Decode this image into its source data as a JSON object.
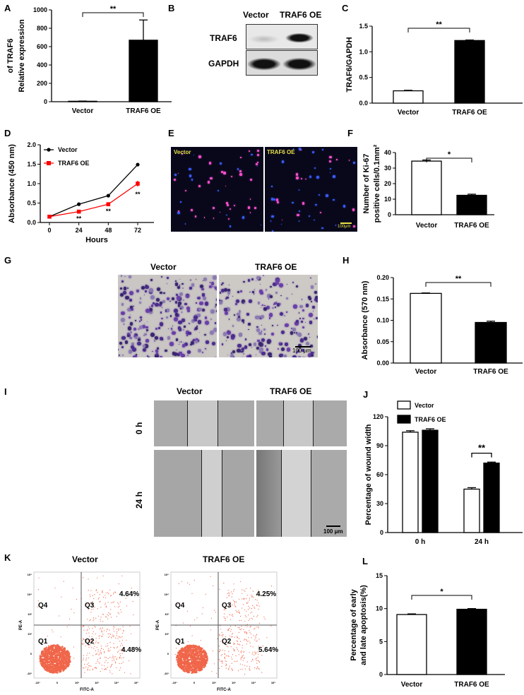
{
  "panel_labels": [
    "A",
    "B",
    "C",
    "D",
    "E",
    "F",
    "G",
    "H",
    "I",
    "J",
    "K",
    "L"
  ],
  "western_blot": {
    "lanes": [
      "Vector",
      "TRAF6 OE"
    ],
    "rows": [
      "TRAF6",
      "GAPDH"
    ]
  },
  "if_image": {
    "labels": [
      "Vector",
      "TRAF6 OE"
    ],
    "scale_bar": "100μm",
    "colors": {
      "nuclei": "#3a5cff",
      "ki67": "#ff4fd0"
    }
  },
  "transwell": {
    "labels": [
      "Vector",
      "TRAF6 OE"
    ],
    "scale_bar": "100 μm"
  },
  "wound": {
    "columns": [
      "Vector",
      "TRAF6 OE"
    ],
    "rows": [
      "0 h",
      "24 h"
    ],
    "scale_bar": "100 μm"
  },
  "flow": {
    "titles": [
      "Vector",
      "TRAF6 OE"
    ],
    "x_label": "FITC-A",
    "y_label": "PE-A",
    "quadrants": [
      "Q4",
      "Q3",
      "Q1",
      "Q2"
    ],
    "percentages": [
      {
        "q3": "4.64%",
        "q2": "4.48%"
      },
      {
        "q3": "4.25%",
        "q2": "5.64%"
      }
    ],
    "x_ticks": [
      "-10³",
      "0",
      "10³",
      "10³",
      "10⁴",
      "10⁵"
    ],
    "y_ticks": [
      "-10³",
      "0",
      "10³",
      "10³",
      "10⁴",
      "10⁵"
    ],
    "dot_color": "#f0664a"
  },
  "chart_data": [
    {
      "id": "A",
      "type": "bar",
      "categories": [
        "Vector",
        "TRAF6 OE"
      ],
      "values": [
        5,
        670
      ],
      "errors": [
        2,
        220
      ],
      "fills": [
        "#ffffff",
        "#000000"
      ],
      "ylabel": [
        "Relative expression",
        "of TRAF6"
      ],
      "ylim": [
        0,
        1000
      ],
      "yticks": [
        "0",
        "200",
        "400",
        "600",
        "800",
        "1000"
      ],
      "significance": "**"
    },
    {
      "id": "C",
      "type": "bar",
      "categories": [
        "Vector",
        "TRAF6 OE"
      ],
      "values": [
        0.24,
        1.22
      ],
      "errors": [
        0.01,
        0.01
      ],
      "fills": [
        "#ffffff",
        "#000000"
      ],
      "ylabel": [
        "TRAF6/GAPDH"
      ],
      "ylim": [
        0,
        1.5
      ],
      "yticks": [
        "0.0",
        "0.5",
        "1.0",
        "1.5"
      ],
      "significance": "**"
    },
    {
      "id": "D",
      "type": "line",
      "x": [
        0,
        24,
        48,
        72
      ],
      "xlabel": "Hours",
      "xticks": [
        "0",
        "24",
        "48",
        "72"
      ],
      "ylabel": [
        "Absorbance (450 nm)"
      ],
      "ylim": [
        0,
        2.0
      ],
      "yticks": [
        "0.0",
        "0.5",
        "1.0",
        "1.5",
        "2.0"
      ],
      "series": [
        {
          "name": "Vector",
          "values": [
            0.15,
            0.47,
            0.69,
            1.49
          ],
          "errors": [
            0.01,
            0.01,
            0.01,
            0.01
          ],
          "color": "#000000"
        },
        {
          "name": "TRAF6 OE",
          "values": [
            0.15,
            0.28,
            0.47,
            1.0
          ],
          "errors": [
            0.01,
            0.03,
            0.03,
            0.07
          ],
          "color": "#ff0000"
        }
      ],
      "significance": [
        "",
        "**",
        "**",
        "**"
      ],
      "legend": "top-left"
    },
    {
      "id": "F",
      "type": "bar",
      "categories": [
        "Vector",
        "TRAF6 OE"
      ],
      "values": [
        34.5,
        12.5
      ],
      "errors": [
        0.7,
        0.7
      ],
      "fills": [
        "#ffffff",
        "#000000"
      ],
      "ylabel": [
        "Number of Ki-67",
        "positive cells/0.1mm²"
      ],
      "ylim": [
        0,
        40
      ],
      "yticks": [
        "0",
        "10",
        "20",
        "30",
        "40"
      ],
      "significance": "*"
    },
    {
      "id": "H",
      "type": "bar",
      "categories": [
        "Vector",
        "TRAF6 OE"
      ],
      "values": [
        0.163,
        0.095
      ],
      "errors": [
        0.001,
        0.003
      ],
      "fills": [
        "#ffffff",
        "#000000"
      ],
      "ylabel": [
        "Absorbance (570 nm)"
      ],
      "ylim": [
        0,
        0.2
      ],
      "yticks": [
        "0.00",
        "0.05",
        "0.10",
        "0.15",
        "0.20"
      ],
      "significance": "**"
    },
    {
      "id": "J",
      "type": "bar",
      "categories": [
        "0 h",
        "24 h"
      ],
      "ylabel": [
        "Percentage of wound width"
      ],
      "ylim": [
        0,
        120
      ],
      "yticks": [
        "0",
        "30",
        "60",
        "90",
        "120"
      ],
      "series": [
        {
          "name": "Vector",
          "values": [
            104,
            45
          ],
          "errors": [
            1.5,
            1.5
          ],
          "fill": "#ffffff"
        },
        {
          "name": "TRAF6 OE",
          "values": [
            106,
            72
          ],
          "errors": [
            1.5,
            1
          ],
          " fill": "#000000",
          "fill": "#000000"
        }
      ],
      "significance": [
        "",
        "**"
      ],
      "legend": "top-left"
    },
    {
      "id": "L",
      "type": "bar",
      "categories": [
        "Vector",
        "TRAF6 OE"
      ],
      "values": [
        9.1,
        9.9
      ],
      "errors": [
        0.1,
        0.1
      ],
      "fills": [
        "#ffffff",
        "#000000"
      ],
      "ylabel": [
        "Percentage of early",
        "and late apoptosis(%)"
      ],
      "ylim": [
        0,
        15
      ],
      "yticks": [
        "0",
        "5",
        "10",
        "15"
      ],
      "significance": "*"
    }
  ]
}
